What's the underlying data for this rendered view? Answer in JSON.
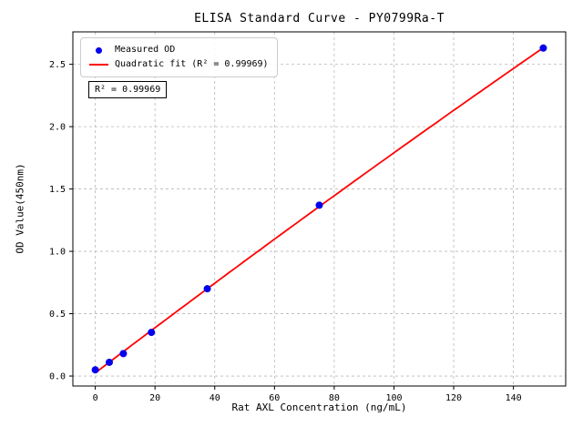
{
  "chart_data": {
    "type": "scatter",
    "title": "ELISA Standard Curve - PY0799Ra-T",
    "xlabel": "Rat AXL Concentration (ng/mL)",
    "ylabel": "OD Value(450nm)",
    "xlim": [
      -7.5,
      157.5
    ],
    "ylim": [
      -0.08,
      2.76
    ],
    "xticks": [
      0,
      20,
      40,
      60,
      80,
      100,
      120,
      140
    ],
    "yticks": [
      0,
      0.5,
      1,
      1.5,
      2,
      2.5
    ],
    "grid": true,
    "legend_position": "upper left",
    "annotation": "R² = 0.99969",
    "series": [
      {
        "name": "Measured OD",
        "kind": "scatter",
        "color": "#0000ee",
        "x": [
          0,
          4.7,
          9.4,
          18.8,
          37.5,
          75,
          150
        ],
        "y": [
          0.05,
          0.11,
          0.18,
          0.35,
          0.7,
          1.37,
          2.63
        ]
      },
      {
        "name": "Quadratic fit (R² = 0.99969)",
        "kind": "line",
        "color": "#ff0000"
      }
    ]
  }
}
